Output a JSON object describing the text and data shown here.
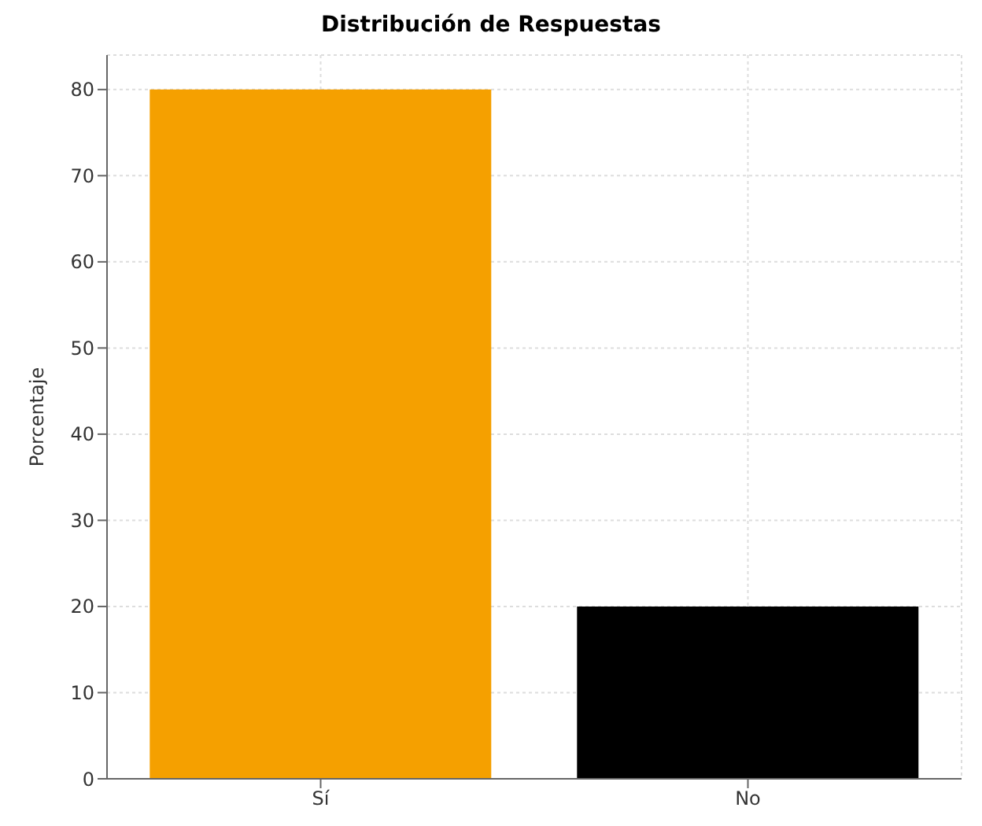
{
  "chart_data": {
    "type": "bar",
    "title": "Distribución de Respuestas",
    "ylabel": "Porcentaje",
    "categories": [
      "Sí",
      "No"
    ],
    "values": [
      80,
      20
    ],
    "colors": [
      "#f5a000",
      "#000000"
    ],
    "ylim": [
      0,
      84
    ],
    "yticks": [
      0,
      10,
      20,
      30,
      40,
      50,
      60,
      70,
      80
    ],
    "grid": true,
    "legend": false
  }
}
